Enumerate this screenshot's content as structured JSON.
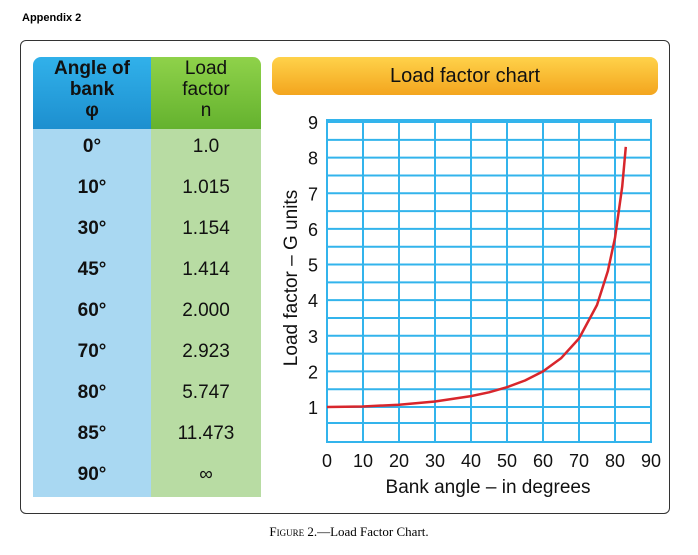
{
  "appendix_label": "Appendix 2",
  "table": {
    "header_angle": [
      "Angle of",
      "bank",
      "φ"
    ],
    "header_load": [
      "Load",
      "factor",
      "n"
    ],
    "rows": [
      {
        "angle": "0°",
        "load": "1.0"
      },
      {
        "angle": "10°",
        "load": "1.015"
      },
      {
        "angle": "30°",
        "load": "1.154"
      },
      {
        "angle": "45°",
        "load": "1.414"
      },
      {
        "angle": "60°",
        "load": "2.000"
      },
      {
        "angle": "70°",
        "load": "2.923"
      },
      {
        "angle": "80°",
        "load": "5.747"
      },
      {
        "angle": "85°",
        "load": "11.473"
      },
      {
        "angle": "90°",
        "load": "∞"
      }
    ]
  },
  "caption": {
    "figure": "Figure 2.",
    "text": "—Load Factor Chart."
  },
  "colors": {
    "curve": "#d8262c",
    "grid": "#33b4ec",
    "angle_col": "#a9d8f2",
    "load_col": "#b8dca3"
  },
  "chart_data": {
    "type": "line",
    "title": "Load factor chart",
    "xlabel": "Bank angle – in degrees",
    "ylabel": "Load factor – G units",
    "xlim": [
      0,
      90
    ],
    "ylim": [
      1,
      9
    ],
    "xticks": [
      "0",
      "10",
      "20",
      "30",
      "40",
      "50",
      "60",
      "70",
      "80",
      "90"
    ],
    "yticks": [
      "1",
      "2",
      "3",
      "4",
      "5",
      "6",
      "7",
      "8",
      "9"
    ],
    "grid": true,
    "series": [
      {
        "x": [
          0,
          10,
          20,
          30,
          40,
          45,
          50,
          55,
          60,
          65,
          70,
          75,
          78,
          80,
          82,
          83
        ],
        "y": [
          1.0,
          1.015,
          1.064,
          1.154,
          1.305,
          1.414,
          1.556,
          1.743,
          2.0,
          2.366,
          2.923,
          3.864,
          4.81,
          5.747,
          7.185,
          8.3
        ]
      }
    ]
  }
}
